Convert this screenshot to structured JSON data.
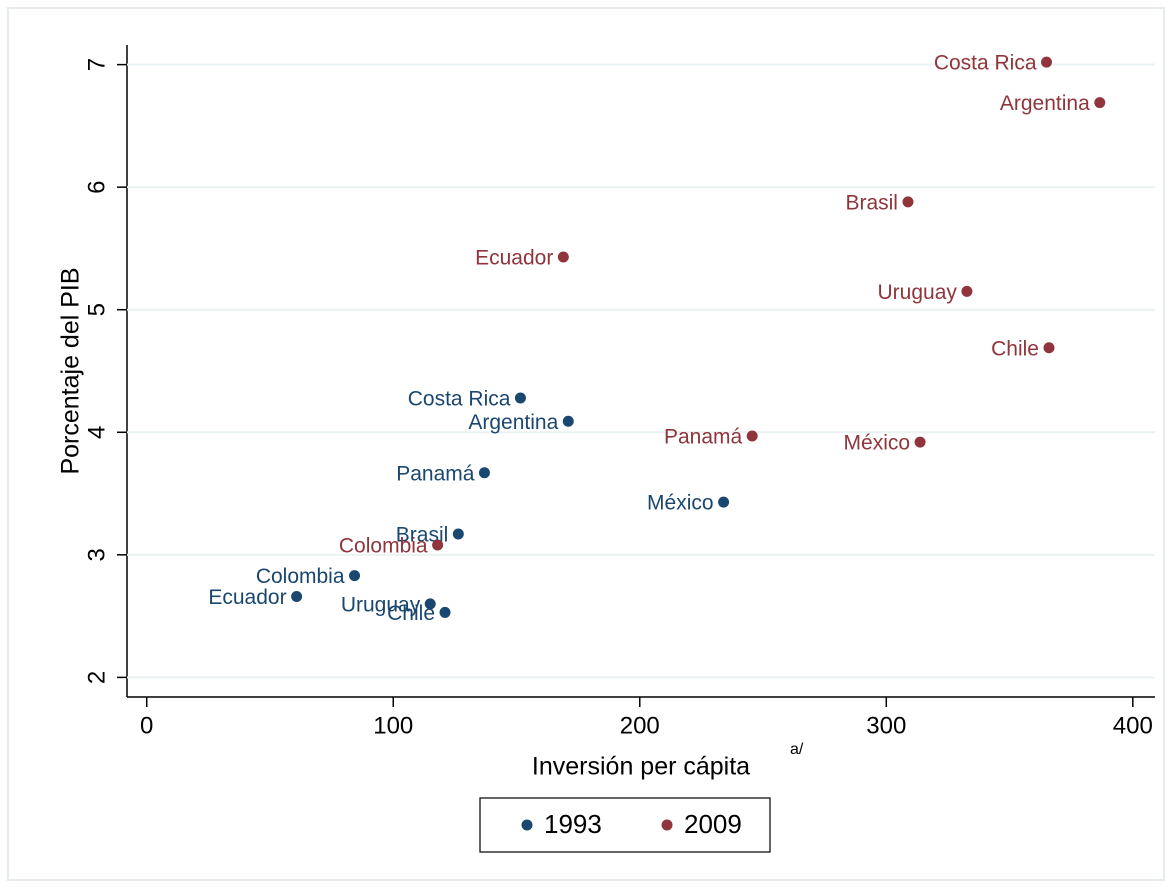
{
  "chart_data": {
    "type": "scatter",
    "x_label": "Inversión per cápita",
    "x_label_note": "a/",
    "y_label": "Porcentaje del PIB",
    "xlim": [
      -8,
      409
    ],
    "ylim": [
      1.84,
      7.16
    ],
    "xticks": [
      0,
      100,
      200,
      300,
      400
    ],
    "yticks": [
      2,
      3,
      4,
      5,
      6,
      7
    ],
    "grid": true,
    "legend": "bottom",
    "series": [
      {
        "name": "1993",
        "color": "#1a476f",
        "labels": [
          "Costa Rica",
          "Argentina",
          "Panamá",
          "México",
          "Brasil",
          "Colombia",
          "Ecuador",
          "Uruguay",
          "Chile"
        ],
        "x": [
          151.6,
          171,
          137,
          234,
          126.4,
          84.3,
          60.8,
          115,
          121
        ],
        "y": [
          4.28,
          4.09,
          3.67,
          3.43,
          3.17,
          2.83,
          2.66,
          2.6,
          2.53
        ]
      },
      {
        "name": "2009",
        "color": "#90353b",
        "labels": [
          "Costa Rica",
          "Argentina",
          "Brasil",
          "Ecuador",
          "Uruguay",
          "Chile",
          "Panamá",
          "México",
          "Colombia"
        ],
        "x": [
          365,
          386.6,
          308.8,
          169,
          332.7,
          366,
          245.6,
          313.7,
          118
        ],
        "y": [
          7.02,
          6.69,
          5.88,
          5.43,
          5.15,
          4.69,
          3.97,
          3.92,
          3.08
        ]
      }
    ]
  }
}
